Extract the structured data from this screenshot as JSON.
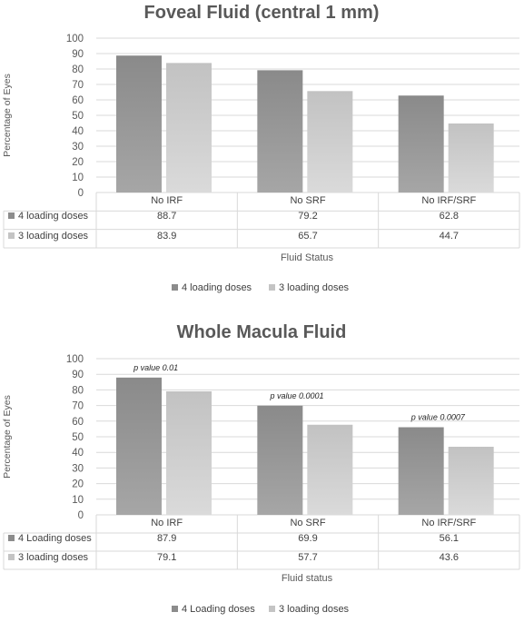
{
  "chart_data": [
    {
      "type": "bar",
      "title": "Foveal Fluid (central 1 mm)",
      "ylabel": "Percentage of Eyes",
      "xlabel": "Fluid Status",
      "ylim": [
        0,
        100
      ],
      "yticks": [
        "0",
        "10",
        "20",
        "30",
        "40",
        "50",
        "60",
        "70",
        "80",
        "90",
        "100"
      ],
      "categories": [
        "No IRF",
        "No SRF",
        "No IRF/SRF"
      ],
      "series": [
        {
          "name": "4 loading doses",
          "values": [
            88.7,
            79.2,
            62.8
          ],
          "labels": [
            "88.7",
            "79.2",
            "62.8"
          ],
          "color": "#8c8c8c"
        },
        {
          "name": "3 loading doses",
          "values": [
            83.9,
            65.7,
            44.7
          ],
          "labels": [
            "83.9",
            "65.7",
            "44.7"
          ],
          "color": "#c4c4c4"
        }
      ],
      "annotations": [],
      "grid": true,
      "legend": "bottom"
    },
    {
      "type": "bar",
      "title": "Whole Macula Fluid",
      "ylabel": "Percentage of Eyes",
      "xlabel": "Fluid status",
      "ylim": [
        0,
        100
      ],
      "yticks": [
        "0",
        "10",
        "20",
        "30",
        "40",
        "50",
        "60",
        "70",
        "80",
        "90",
        "100"
      ],
      "categories": [
        "No IRF",
        "No SRF",
        "No IRF/SRF"
      ],
      "series": [
        {
          "name": "4 Loading doses",
          "values": [
            87.9,
            69.9,
            56.1
          ],
          "labels": [
            "87.9",
            "69.9",
            "56.1"
          ],
          "color": "#8c8c8c"
        },
        {
          "name": "3 loading doses",
          "values": [
            79.1,
            57.7,
            43.6
          ],
          "labels": [
            "79.1",
            "57.7",
            "43.6"
          ],
          "color": "#c4c4c4"
        }
      ],
      "annotations": [
        {
          "category": 0,
          "text": "p value 0.01"
        },
        {
          "category": 1,
          "text": "p value 0.0001"
        },
        {
          "category": 2,
          "text": "p value 0.0007"
        }
      ],
      "grid": true,
      "legend": "bottom"
    }
  ]
}
